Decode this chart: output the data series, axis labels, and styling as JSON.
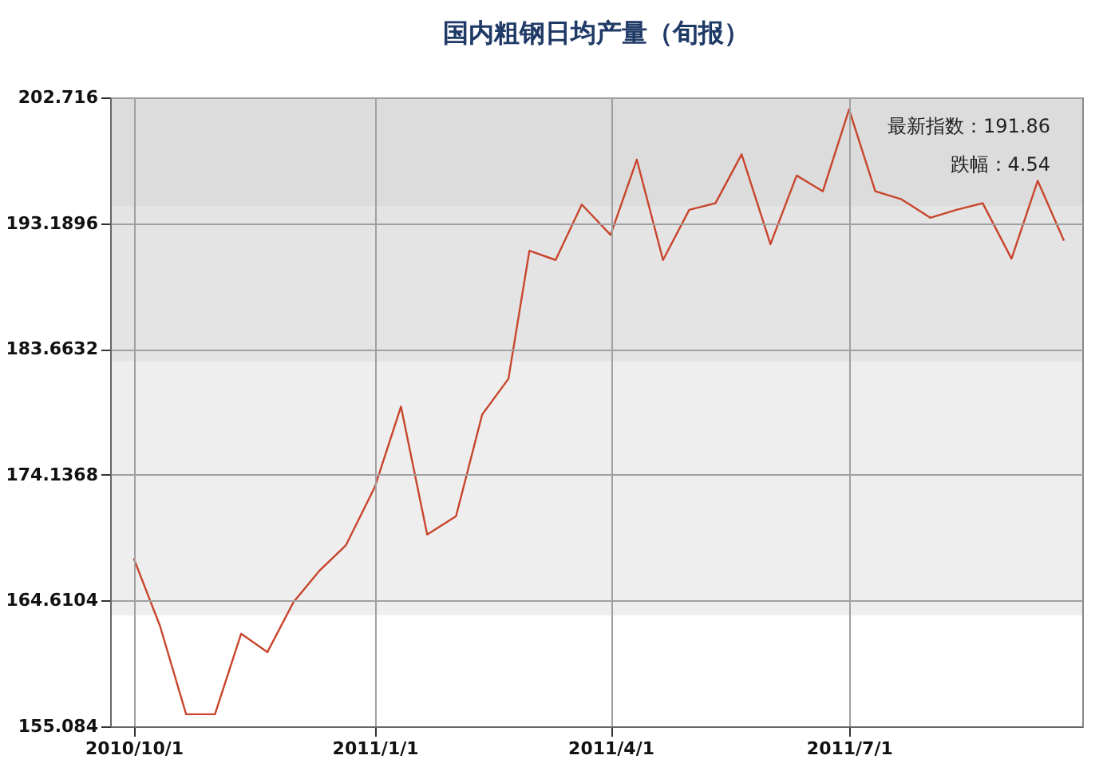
{
  "chart_data": {
    "type": "line",
    "title": "国内粗钢日均产量（旬报）",
    "x": [
      "2010-10-01",
      "2010-10-11",
      "2010-10-21",
      "2010-11-01",
      "2010-11-11",
      "2010-11-21",
      "2010-12-01",
      "2010-12-11",
      "2010-12-21",
      "2011-01-01",
      "2011-01-11",
      "2011-01-21",
      "2011-02-01",
      "2011-02-11",
      "2011-02-21",
      "2011-03-01",
      "2011-03-11",
      "2011-03-21",
      "2011-04-01",
      "2011-04-11",
      "2011-04-21",
      "2011-05-01",
      "2011-05-11",
      "2011-05-21",
      "2011-06-01",
      "2011-06-11",
      "2011-06-21",
      "2011-07-01",
      "2011-07-11",
      "2011-07-21",
      "2011-08-01",
      "2011-08-11",
      "2011-08-21",
      "2011-09-01",
      "2011-09-11",
      "2011-09-21"
    ],
    "series": [
      {
        "color": "#c8452c",
        "values": [
          167.8,
          162.7,
          156.0,
          156.0,
          162.1,
          160.7,
          164.5,
          166.9,
          168.8,
          173.2,
          179.3,
          169.6,
          171.0,
          178.7,
          181.4,
          191.1,
          190.4,
          194.6,
          192.3,
          198.0,
          190.4,
          194.2,
          194.7,
          198.4,
          191.6,
          196.8,
          195.6,
          201.8,
          195.6,
          195.0,
          193.6,
          194.2,
          194.7,
          190.5,
          196.4,
          191.86
        ]
      }
    ],
    "xlim": [
      "2010-09-22",
      "2011-09-28"
    ],
    "xticks": [
      {
        "value": "2010-10-01",
        "label": "2010/10/1"
      },
      {
        "value": "2011-01-01",
        "label": "2011/1/1"
      },
      {
        "value": "2011-04-01",
        "label": "2011/4/1"
      },
      {
        "value": "2011-07-01",
        "label": "2011/7/1"
      }
    ],
    "ylim": [
      155.084,
      202.716
    ],
    "yticks": [
      155.084,
      164.6104,
      174.1368,
      183.6632,
      193.1896,
      202.716
    ],
    "grid": true,
    "bands": [
      {
        "axis": "y",
        "from": 194.5,
        "to": 202.716,
        "color": "#dcdcdc"
      },
      {
        "axis": "y",
        "from": 182.7,
        "to": 194.5,
        "color": "#e4e4e4"
      },
      {
        "axis": "y",
        "from": 163.5,
        "to": 182.7,
        "color": "#eeeeee"
      }
    ],
    "annotations": [
      "最新指数：191.86",
      "跌幅：4.54"
    ]
  }
}
